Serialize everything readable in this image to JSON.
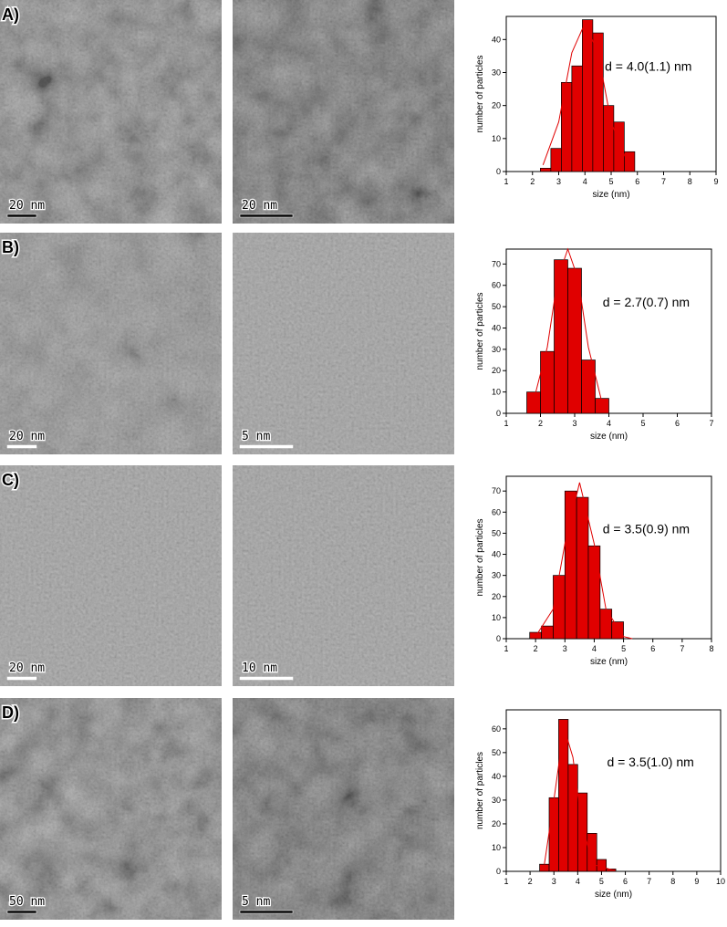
{
  "panels": [
    {
      "label": "A)",
      "scale_bars": [
        "20 nm",
        "20 nm"
      ]
    },
    {
      "label": "B)",
      "scale_bars": [
        "20 nm",
        "5 nm"
      ]
    },
    {
      "label": "C)",
      "scale_bars": [
        "20 nm",
        "10 nm"
      ]
    },
    {
      "label": "D)",
      "scale_bars": [
        "50 nm",
        "5 nm"
      ]
    }
  ],
  "chart_data": [
    {
      "type": "histogram",
      "annotation": "d = 4.0(1.1) nm",
      "x_label": "size (nm)",
      "y_label": "number of particles",
      "color": "#e00000",
      "bins": [
        2.3,
        2.7,
        3.1,
        3.5,
        3.9,
        4.3,
        4.7,
        5.1,
        5.5,
        5.9
      ],
      "values": [
        1,
        7,
        27,
        32,
        46,
        42,
        20,
        15,
        6
      ],
      "fit": {
        "x": [
          2.4,
          3.0,
          3.5,
          4.0,
          4.5,
          5.0,
          5.6
        ],
        "y": [
          2,
          15,
          36,
          45,
          36,
          15,
          3
        ]
      },
      "xlim": [
        1,
        9
      ],
      "xticks": [
        1,
        2,
        3,
        4,
        5,
        6,
        7,
        8,
        9
      ],
      "ylim": [
        0,
        47
      ],
      "yticks": [
        0,
        10,
        20,
        30,
        40
      ]
    },
    {
      "type": "histogram",
      "annotation": "d = 2.7(0.7) nm",
      "x_label": "size (nm)",
      "y_label": "number of particles",
      "color": "#e00000",
      "bins": [
        1.6,
        2.0,
        2.4,
        2.8,
        3.2,
        3.6,
        4.0
      ],
      "values": [
        10,
        29,
        72,
        68,
        25,
        7
      ],
      "fit": {
        "x": [
          1.8,
          2.2,
          2.5,
          2.8,
          3.1,
          3.4,
          3.8
        ],
        "y": [
          6,
          31,
          63,
          77,
          63,
          31,
          5
        ]
      },
      "xlim": [
        1,
        7
      ],
      "xticks": [
        1,
        2,
        3,
        4,
        5,
        6,
        7
      ],
      "ylim": [
        0,
        77
      ],
      "yticks": [
        0,
        10,
        20,
        30,
        40,
        50,
        60,
        70
      ]
    },
    {
      "type": "histogram",
      "annotation": "d = 3.5(0.9) nm",
      "x_label": "size (nm)",
      "y_label": "number of particles",
      "color": "#e00000",
      "bins": [
        1.8,
        2.2,
        2.6,
        3.0,
        3.4,
        3.8,
        4.2,
        4.6,
        5.0
      ],
      "values": [
        3,
        6,
        30,
        70,
        67,
        44,
        14,
        8
      ],
      "fit": {
        "x": [
          2.0,
          2.6,
          3.0,
          3.5,
          4.0,
          4.4,
          5.0,
          5.3
        ],
        "y": [
          1,
          14,
          45,
          74,
          45,
          14,
          1,
          0
        ]
      },
      "xlim": [
        1,
        8
      ],
      "xticks": [
        1,
        2,
        3,
        4,
        5,
        6,
        7,
        8
      ],
      "ylim": [
        0,
        77
      ],
      "yticks": [
        0,
        10,
        20,
        30,
        40,
        50,
        60,
        70
      ]
    },
    {
      "type": "histogram",
      "annotation": "d = 3.5(1.0) nm",
      "x_label": "size (nm)",
      "y_label": "number of particles",
      "color": "#e00000",
      "bins": [
        2.4,
        2.8,
        3.2,
        3.6,
        4.0,
        4.4,
        4.8,
        5.2,
        5.6
      ],
      "values": [
        3,
        31,
        64,
        45,
        33,
        16,
        5,
        1
      ],
      "fit": {
        "x": [
          2.6,
          3.0,
          3.3,
          3.5,
          3.8,
          4.1,
          4.6,
          5.5
        ],
        "y": [
          3,
          30,
          52,
          58,
          48,
          25,
          3,
          0.5
        ]
      },
      "xlim": [
        1,
        10
      ],
      "xticks": [
        1,
        2,
        3,
        4,
        5,
        6,
        7,
        8,
        9,
        10
      ],
      "ylim": [
        0,
        68
      ],
      "yticks": [
        0,
        10,
        20,
        30,
        40,
        50,
        60
      ]
    }
  ]
}
